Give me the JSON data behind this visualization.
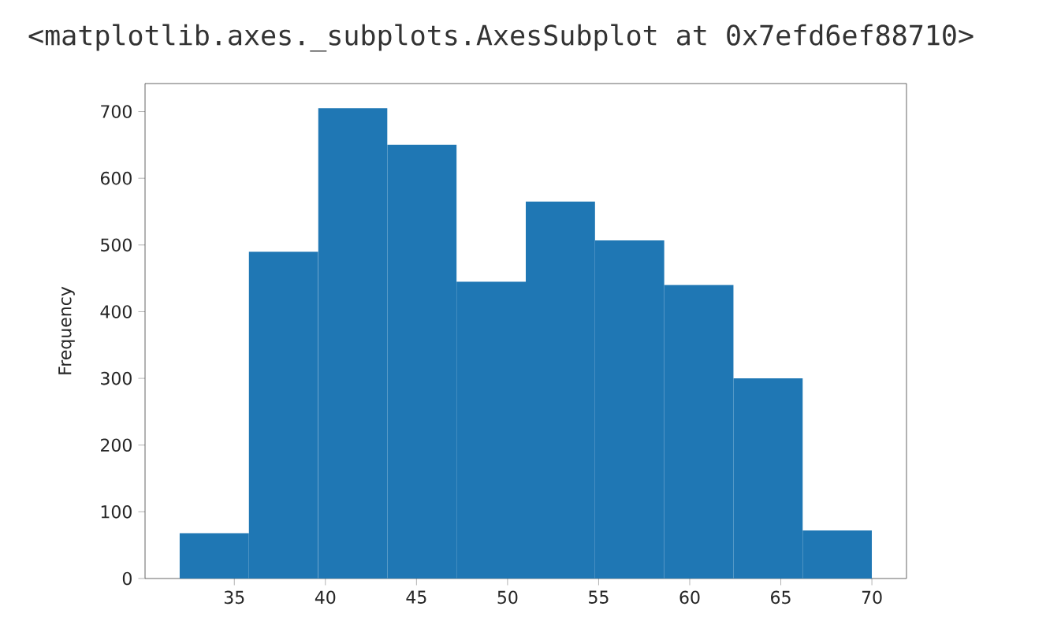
{
  "chart_data": {
    "type": "histogram",
    "title": "<matplotlib.axes._subplots.AxesSubplot at 0x7efd6ef88710>",
    "ylabel": "Frequency",
    "bins": [
      32,
      35.8,
      39.6,
      43.4,
      47.2,
      51,
      54.8,
      58.6,
      62.4,
      66.2,
      70
    ],
    "values": [
      68,
      490,
      705,
      650,
      445,
      565,
      507,
      440,
      300,
      72
    ],
    "color": "#1f77b4",
    "xlim": [
      30.1,
      71.9
    ],
    "ylim": [
      0,
      742
    ],
    "xticks": [
      35,
      40,
      45,
      50,
      55,
      60,
      65,
      70
    ],
    "yticks": [
      0,
      100,
      200,
      300,
      400,
      500,
      600,
      700
    ],
    "grid": false
  }
}
